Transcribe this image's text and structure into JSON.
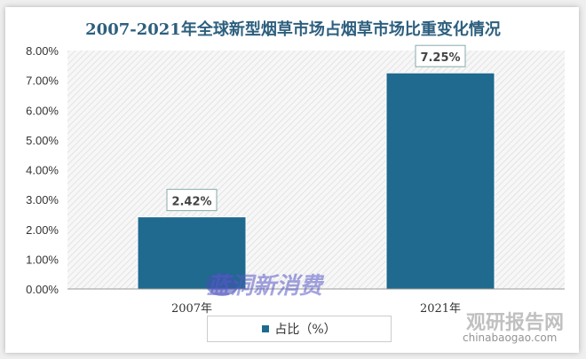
{
  "chart_data": {
    "type": "bar",
    "title": "2007-2021年全球新型烟草市场占烟草市场比重变化情况",
    "categories": [
      "2007年",
      "2021年"
    ],
    "series": [
      {
        "name": "占比（%）",
        "values": [
          2.42,
          7.25
        ],
        "color": "#1f6a8e"
      }
    ],
    "data_labels": [
      "2.42%",
      "7.25%"
    ],
    "yticks": [
      "0.00%",
      "1.00%",
      "2.00%",
      "3.00%",
      "4.00%",
      "5.00%",
      "6.00%",
      "7.00%",
      "8.00%"
    ],
    "ylim": [
      0,
      8
    ],
    "xlabel": "",
    "ylabel": "",
    "legend": "bottom-center",
    "grid": false
  },
  "watermarks": [
    "蓝洞新消费",
    "观研报告网",
    "chinabaogao.com"
  ]
}
